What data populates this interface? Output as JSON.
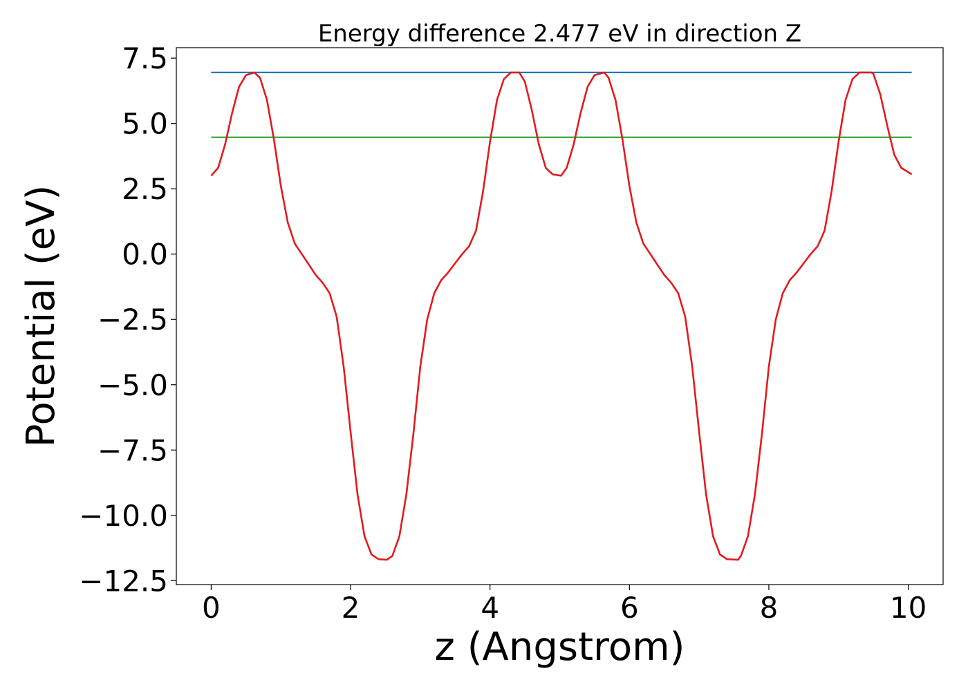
{
  "chart_data": {
    "type": "line",
    "title": "Energy difference 2.477 eV in direction Z",
    "xlabel": "z (Angstrom)",
    "ylabel": "Potential (eV)",
    "xlim": [
      -0.5,
      10.5
    ],
    "ylim": [
      -12.65,
      7.9
    ],
    "x_ticks": [
      0,
      2,
      4,
      6,
      8,
      10
    ],
    "x_tick_labels": [
      "0",
      "2",
      "4",
      "6",
      "8",
      "10"
    ],
    "y_ticks": [
      7.5,
      5.0,
      2.5,
      0.0,
      -2.5,
      -5.0,
      -7.5,
      -10.0,
      -12.5
    ],
    "y_tick_labels": [
      "7.5",
      "5.0",
      "2.5",
      "0.0",
      "−2.5",
      "−5.0",
      "−7.5",
      "−10.0",
      "−12.5"
    ],
    "grid": false,
    "series": [
      {
        "color": "#1f77b4",
        "x": [
          0,
          10.05
        ],
        "y": [
          6.95,
          6.95
        ]
      },
      {
        "color": "#2ca02c",
        "x": [
          0,
          10.05
        ],
        "y": [
          4.47,
          4.47
        ]
      },
      {
        "color": "#e31a1c",
        "x": [
          0.0,
          0.1,
          0.2,
          0.3,
          0.4,
          0.5,
          0.62,
          0.7,
          0.8,
          0.9,
          1.0,
          1.1,
          1.2,
          1.3,
          1.4,
          1.5,
          1.6,
          1.7,
          1.8,
          1.9,
          2.0,
          2.1,
          2.2,
          2.3,
          2.4,
          2.52,
          2.6,
          2.7,
          2.8,
          2.9,
          3.0,
          3.1,
          3.2,
          3.3,
          3.4,
          3.5,
          3.6,
          3.7,
          3.8,
          3.9,
          4.0,
          4.1,
          4.2,
          4.3,
          4.42,
          4.5,
          4.6,
          4.7,
          4.8,
          4.9,
          5.02,
          5.1,
          5.2,
          5.3,
          5.4,
          5.5,
          5.64,
          5.7,
          5.8,
          5.9,
          6.0,
          6.1,
          6.2,
          6.3,
          6.4,
          6.5,
          6.6,
          6.7,
          6.8,
          6.9,
          7.0,
          7.1,
          7.2,
          7.3,
          7.4,
          7.56,
          7.6,
          7.7,
          7.8,
          7.9,
          8.0,
          8.1,
          8.2,
          8.3,
          8.4,
          8.5,
          8.6,
          8.7,
          8.8,
          8.9,
          9.0,
          9.1,
          9.2,
          9.3,
          9.47,
          9.5,
          9.6,
          9.7,
          9.8,
          9.9,
          10.05
        ],
        "y": [
          3.0,
          3.3,
          4.2,
          5.4,
          6.4,
          6.85,
          6.95,
          6.75,
          5.9,
          4.4,
          2.6,
          1.2,
          0.4,
          0.0,
          -0.4,
          -0.8,
          -1.1,
          -1.5,
          -2.4,
          -4.3,
          -6.8,
          -9.2,
          -10.8,
          -11.5,
          -11.68,
          -11.7,
          -11.55,
          -10.8,
          -9.2,
          -6.9,
          -4.3,
          -2.5,
          -1.5,
          -1.0,
          -0.7,
          -0.35,
          0.0,
          0.3,
          0.9,
          2.4,
          4.3,
          5.9,
          6.7,
          6.95,
          6.95,
          6.6,
          5.5,
          4.2,
          3.3,
          3.05,
          3.0,
          3.3,
          4.2,
          5.4,
          6.4,
          6.85,
          6.95,
          6.75,
          5.9,
          4.4,
          2.6,
          1.2,
          0.4,
          0.0,
          -0.4,
          -0.8,
          -1.1,
          -1.5,
          -2.4,
          -4.3,
          -6.8,
          -9.2,
          -10.8,
          -11.5,
          -11.68,
          -11.7,
          -11.55,
          -10.8,
          -9.2,
          -6.9,
          -4.3,
          -2.5,
          -1.5,
          -1.0,
          -0.7,
          -0.35,
          0.0,
          0.3,
          0.9,
          2.4,
          4.3,
          5.9,
          6.7,
          6.95,
          6.95,
          6.9,
          6.1,
          4.9,
          3.8,
          3.3,
          3.05
        ]
      }
    ]
  }
}
